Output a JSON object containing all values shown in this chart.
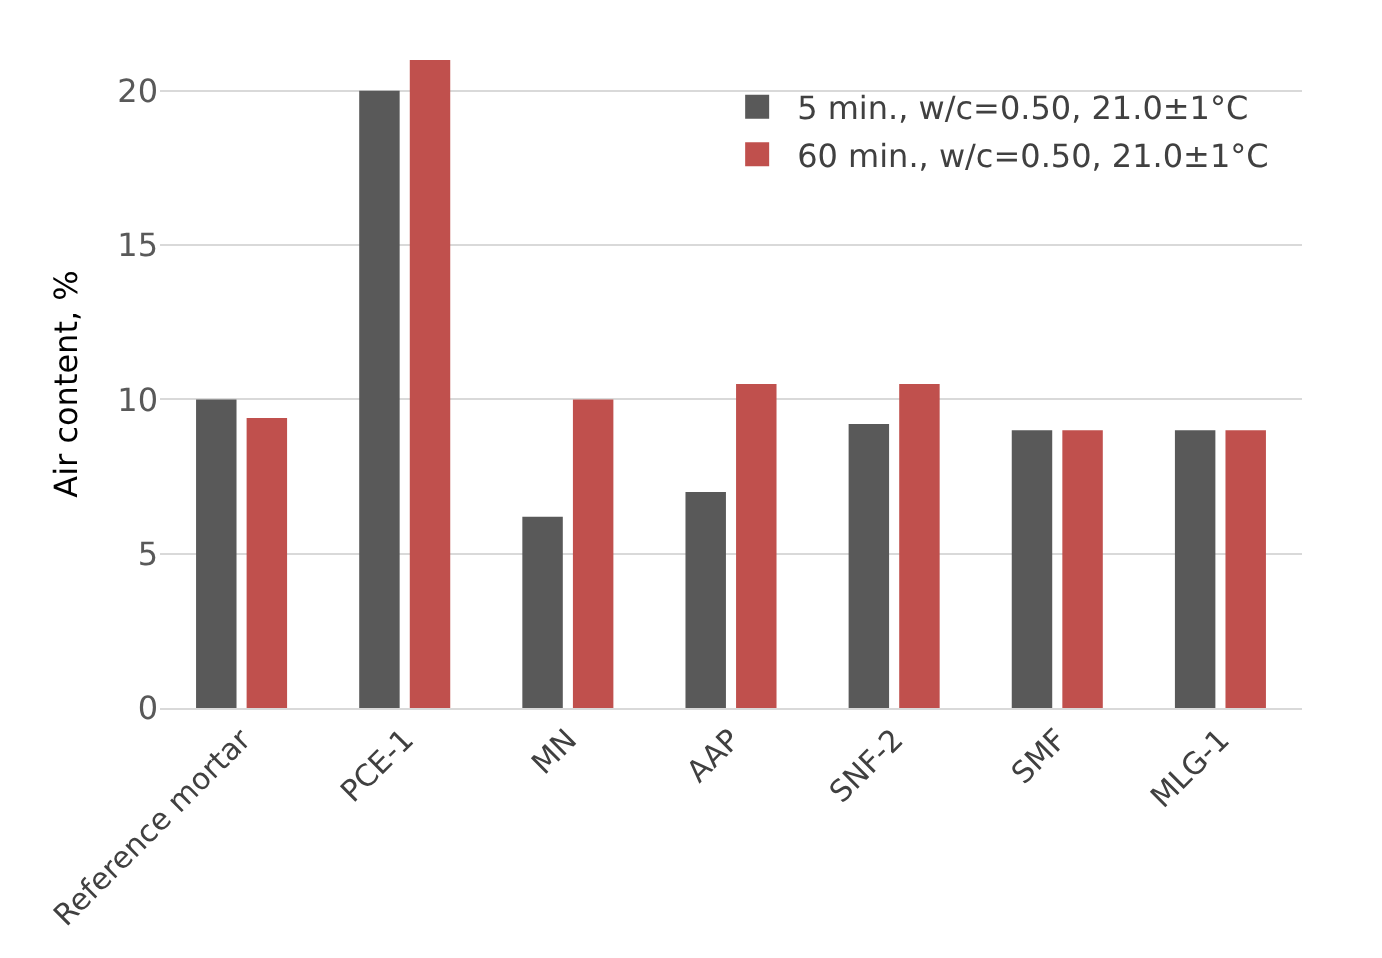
{
  "chart_data": {
    "type": "bar",
    "ylabel": "Air content, %",
    "categories": [
      "Reference mortar",
      "PCE-1",
      "MN",
      "AAP",
      "SNF-2",
      "SMF",
      "MLG-1"
    ],
    "series": [
      {
        "name": "5 min., w/c=0.50, 21.0±1°C",
        "color": "#595959",
        "values": [
          10,
          20,
          6.2,
          7,
          9.2,
          9,
          9
        ]
      },
      {
        "name": "60 min., w/c=0.50, 21.0±1°C",
        "color": "#c0504d",
        "values": [
          9.4,
          21,
          10,
          10.5,
          10.5,
          9,
          9
        ]
      }
    ],
    "ylim": [
      0,
      21
    ],
    "yticks": [
      0,
      5,
      10,
      15,
      20
    ],
    "grid": "y",
    "legend": "top right"
  }
}
